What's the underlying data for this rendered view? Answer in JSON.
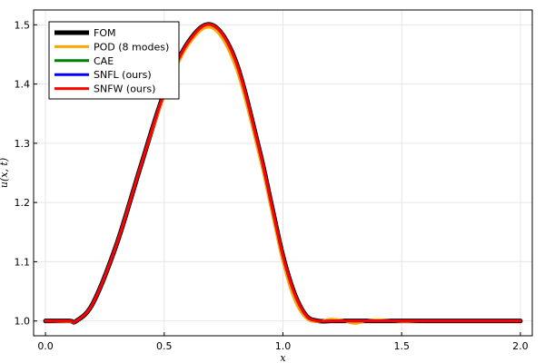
{
  "chart_data": {
    "type": "line",
    "title": "",
    "xlabel": "x",
    "ylabel": "u(x, t)",
    "xlim": [
      -0.05,
      2.05
    ],
    "ylim": [
      0.975,
      1.525
    ],
    "xticks": [
      0.0,
      0.5,
      1.0,
      1.5,
      2.0
    ],
    "xtick_labels": [
      "0.0",
      "0.5",
      "1.0",
      "1.5",
      "2.0"
    ],
    "yticks": [
      1.0,
      1.1,
      1.2,
      1.3,
      1.4,
      1.5
    ],
    "ytick_labels": [
      "1.0",
      "1.1",
      "1.2",
      "1.3",
      "1.4",
      "1.5"
    ],
    "grid": true,
    "legend_position": "top-left",
    "x": [
      0.0,
      0.1,
      0.13,
      0.2,
      0.3,
      0.4,
      0.5,
      0.6,
      0.7,
      0.8,
      0.9,
      0.95,
      1.0,
      1.05,
      1.1,
      1.15,
      1.2,
      1.25,
      1.3,
      1.35,
      1.4,
      1.5,
      1.6,
      1.8,
      2.0
    ],
    "series": [
      {
        "name": "FOM",
        "color": "#000000",
        "width": 5,
        "values": [
          1.0,
          1.0,
          1.0,
          1.03,
          1.13,
          1.26,
          1.385,
          1.47,
          1.5,
          1.44,
          1.29,
          1.2,
          1.11,
          1.045,
          1.008,
          1.0,
          1.0,
          1.0,
          1.0,
          1.0,
          1.0,
          1.0,
          1.0,
          1.0,
          1.0
        ]
      },
      {
        "name": "POD (8 modes)",
        "color": "#ffa500",
        "width": 3,
        "values": [
          1.0,
          0.999,
          1.0,
          1.03,
          1.13,
          1.26,
          1.38,
          1.465,
          1.495,
          1.43,
          1.28,
          1.19,
          1.1,
          1.035,
          1.004,
          0.999,
          1.003,
          1.001,
          0.996,
          1.0,
          1.002,
          0.999,
          1.0,
          1.0,
          1.0
        ]
      },
      {
        "name": "CAE",
        "color": "#008000",
        "width": 3,
        "values": [
          1.0,
          1.0,
          1.0,
          1.03,
          1.13,
          1.26,
          1.385,
          1.47,
          1.5,
          1.44,
          1.29,
          1.2,
          1.11,
          1.045,
          1.008,
          1.0,
          1.0,
          1.0,
          1.0,
          1.0,
          1.0,
          1.0,
          1.0,
          1.0,
          1.0
        ]
      },
      {
        "name": "SNFL (ours)",
        "color": "#0000ff",
        "width": 3,
        "values": [
          1.0,
          1.0,
          1.0,
          1.03,
          1.13,
          1.26,
          1.385,
          1.47,
          1.5,
          1.44,
          1.29,
          1.2,
          1.11,
          1.045,
          1.008,
          1.0,
          1.0,
          1.0,
          1.0,
          1.0,
          1.0,
          1.0,
          1.0,
          1.0,
          1.0
        ]
      },
      {
        "name": "SNFW (ours)",
        "color": "#ff0000",
        "width": 3,
        "values": [
          1.0,
          1.0,
          1.0,
          1.03,
          1.13,
          1.26,
          1.385,
          1.47,
          1.5,
          1.44,
          1.29,
          1.2,
          1.11,
          1.045,
          1.008,
          1.0,
          1.0,
          1.0,
          1.0,
          1.0,
          1.0,
          1.0,
          1.0,
          1.0,
          1.0
        ]
      }
    ]
  }
}
